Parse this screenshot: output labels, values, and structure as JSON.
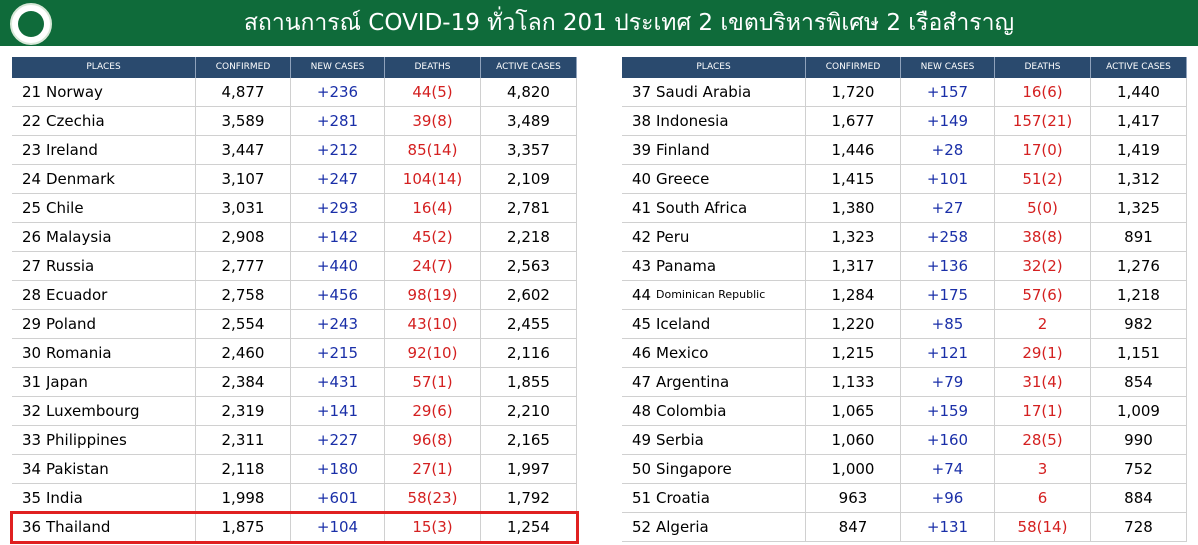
{
  "header": {
    "title": "สถานการณ์ COVID-19 ทั่วโลก 201 ประเทศ 2 เขตบริหารพิเศษ 2 เรือสำราญ"
  },
  "tables": [
    {
      "columns": [
        "PLACES",
        "CONFIRMED",
        "NEW CASES",
        "DEATHS",
        "ACTIVE CASES"
      ],
      "rows": [
        [
          "21",
          "Norway",
          "4,877",
          "+236",
          "44(5)",
          "4,820"
        ],
        [
          "22",
          "Czechia",
          "3,589",
          "+281",
          "39(8)",
          "3,489"
        ],
        [
          "23",
          "Ireland",
          "3,447",
          "+212",
          "85(14)",
          "3,357"
        ],
        [
          "24",
          "Denmark",
          "3,107",
          "+247",
          "104(14)",
          "2,109"
        ],
        [
          "25",
          "Chile",
          "3,031",
          "+293",
          "16(4)",
          "2,781"
        ],
        [
          "26",
          "Malaysia",
          "2,908",
          "+142",
          "45(2)",
          "2,218"
        ],
        [
          "27",
          "Russia",
          "2,777",
          "+440",
          "24(7)",
          "2,563"
        ],
        [
          "28",
          "Ecuador",
          "2,758",
          "+456",
          "98(19)",
          "2,602"
        ],
        [
          "29",
          "Poland",
          "2,554",
          "+243",
          "43(10)",
          "2,455"
        ],
        [
          "30",
          "Romania",
          "2,460",
          "+215",
          "92(10)",
          "2,116"
        ],
        [
          "31",
          "Japan",
          "2,384",
          "+431",
          "57(1)",
          "1,855"
        ],
        [
          "32",
          "Luxembourg",
          "2,319",
          "+141",
          "29(6)",
          "2,210"
        ],
        [
          "33",
          "Philippines",
          "2,311",
          "+227",
          "96(8)",
          "2,165"
        ],
        [
          "34",
          "Pakistan",
          "2,118",
          "+180",
          "27(1)",
          "1,997"
        ],
        [
          "35",
          "India",
          "1,998",
          "+601",
          "58(23)",
          "1,792"
        ],
        [
          "36",
          "Thailand",
          "1,875",
          "+104",
          "15(3)",
          "1,254"
        ]
      ]
    },
    {
      "columns": [
        "PLACES",
        "CONFIRMED",
        "NEW CASES",
        "DEATHS",
        "ACTIVE CASES"
      ],
      "rows": [
        [
          "37",
          "Saudi Arabia",
          "1,720",
          "+157",
          "16(6)",
          "1,440"
        ],
        [
          "38",
          "Indonesia",
          "1,677",
          "+149",
          "157(21)",
          "1,417"
        ],
        [
          "39",
          "Finland",
          "1,446",
          "+28",
          "17(0)",
          "1,419"
        ],
        [
          "40",
          "Greece",
          "1,415",
          "+101",
          "51(2)",
          "1,312"
        ],
        [
          "41",
          "South Africa",
          "1,380",
          "+27",
          "5(0)",
          "1,325"
        ],
        [
          "42",
          "Peru",
          "1,323",
          "+258",
          "38(8)",
          "891"
        ],
        [
          "43",
          "Panama",
          "1,317",
          "+136",
          "32(2)",
          "1,276"
        ],
        [
          "44",
          "Dominican Republic",
          "1,284",
          "+175",
          "57(6)",
          "1,218"
        ],
        [
          "45",
          "Iceland",
          "1,220",
          "+85",
          "2",
          "982"
        ],
        [
          "46",
          "Mexico",
          "1,215",
          "+121",
          "29(1)",
          "1,151"
        ],
        [
          "47",
          "Argentina",
          "1,133",
          "+79",
          "31(4)",
          "854"
        ],
        [
          "48",
          "Colombia",
          "1,065",
          "+159",
          "17(1)",
          "1,009"
        ],
        [
          "49",
          "Serbia",
          "1,060",
          "+160",
          "28(5)",
          "990"
        ],
        [
          "50",
          "Singapore",
          "1,000",
          "+74",
          "3",
          "752"
        ],
        [
          "51",
          "Croatia",
          "963",
          "+96",
          "6",
          "884"
        ],
        [
          "52",
          "Algeria",
          "847",
          "+131",
          "58(14)",
          "728"
        ]
      ]
    }
  ]
}
